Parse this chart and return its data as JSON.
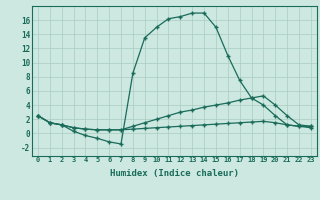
{
  "xlabel": "Humidex (Indice chaleur)",
  "background_color": "#cce8e0",
  "grid_color": "#aaccbf",
  "line_color": "#1a6b5a",
  "x_ticks": [
    0,
    1,
    2,
    3,
    4,
    5,
    6,
    7,
    8,
    9,
    10,
    11,
    12,
    13,
    14,
    15,
    16,
    17,
    18,
    19,
    20,
    21,
    22,
    23
  ],
  "xlim": [
    -0.5,
    23.5
  ],
  "ylim": [
    -3.2,
    18.0
  ],
  "y_ticks": [
    -2,
    0,
    2,
    4,
    6,
    8,
    10,
    12,
    14,
    16
  ],
  "line1_x": [
    0,
    1,
    2,
    3,
    4,
    5,
    6,
    7,
    8,
    9,
    10,
    11,
    12,
    13,
    14,
    15,
    16,
    17,
    18,
    19,
    20,
    21,
    22,
    23
  ],
  "line1_y": [
    2.5,
    1.5,
    1.2,
    0.3,
    -0.3,
    -0.7,
    -1.2,
    -1.5,
    8.5,
    13.5,
    15.0,
    16.2,
    16.5,
    17.0,
    17.0,
    15.0,
    11.0,
    7.5,
    5.0,
    4.0,
    2.5,
    1.2,
    1.0,
    0.8
  ],
  "line2_x": [
    0,
    1,
    2,
    3,
    4,
    5,
    6,
    7,
    8,
    9,
    10,
    11,
    12,
    13,
    14,
    15,
    16,
    17,
    18,
    19,
    20,
    21,
    22,
    23
  ],
  "line2_y": [
    2.5,
    1.5,
    1.2,
    0.8,
    0.6,
    0.5,
    0.5,
    0.5,
    1.0,
    1.5,
    2.0,
    2.5,
    3.0,
    3.3,
    3.7,
    4.0,
    4.3,
    4.7,
    5.0,
    5.3,
    4.0,
    2.5,
    1.2,
    1.0
  ],
  "line3_x": [
    0,
    1,
    2,
    3,
    4,
    5,
    6,
    7,
    8,
    9,
    10,
    11,
    12,
    13,
    14,
    15,
    16,
    17,
    18,
    19,
    20,
    21,
    22,
    23
  ],
  "line3_y": [
    2.5,
    1.5,
    1.2,
    0.8,
    0.6,
    0.5,
    0.5,
    0.5,
    0.6,
    0.7,
    0.8,
    0.9,
    1.0,
    1.1,
    1.2,
    1.3,
    1.4,
    1.5,
    1.6,
    1.7,
    1.5,
    1.2,
    1.0,
    1.0
  ]
}
